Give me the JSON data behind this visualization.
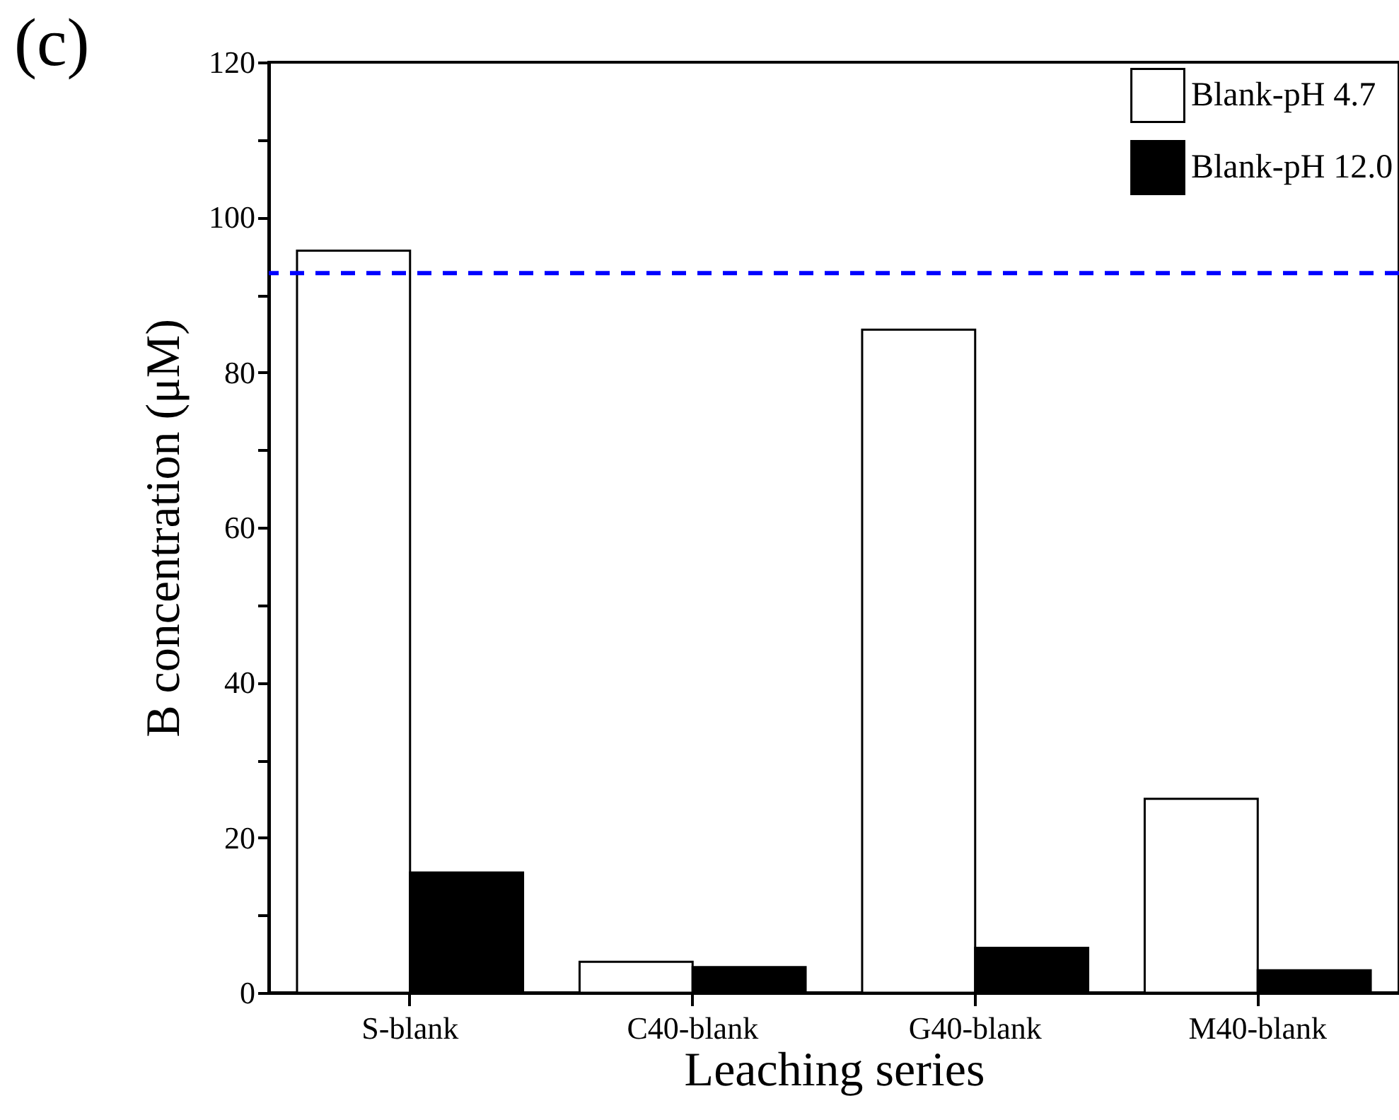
{
  "chart_data": {
    "type": "bar",
    "title": "(c)",
    "xlabel": "Leaching series",
    "ylabel": "B concentration (μM)",
    "categories": [
      "S-blank",
      "C40-blank",
      "G40-blank",
      "M40-blank"
    ],
    "series": [
      {
        "name": "Blank-pH 4.7",
        "color": "#ffffff",
        "values": [
          95.7,
          4.0,
          85.5,
          25.0
        ]
      },
      {
        "name": "Blank-pH 12.0",
        "color": "#000000",
        "values": [
          15.5,
          3.3,
          5.8,
          2.9
        ]
      }
    ],
    "ylim": [
      0,
      120
    ],
    "yticks": [
      0,
      {
        "value": 10,
        "label": null
      },
      20,
      {
        "value": 30,
        "label": null
      },
      40,
      {
        "value": 50,
        "label": null
      },
      60,
      {
        "value": 70,
        "label": null
      },
      80,
      {
        "value": 90,
        "label": null
      },
      100,
      {
        "value": 110,
        "label": null
      },
      120
    ],
    "ref_lines": [
      {
        "axis": "y",
        "value": 92.8,
        "color": "#0000ff",
        "line_style": "dashed"
      }
    ],
    "legend": "top right",
    "grid": false
  }
}
